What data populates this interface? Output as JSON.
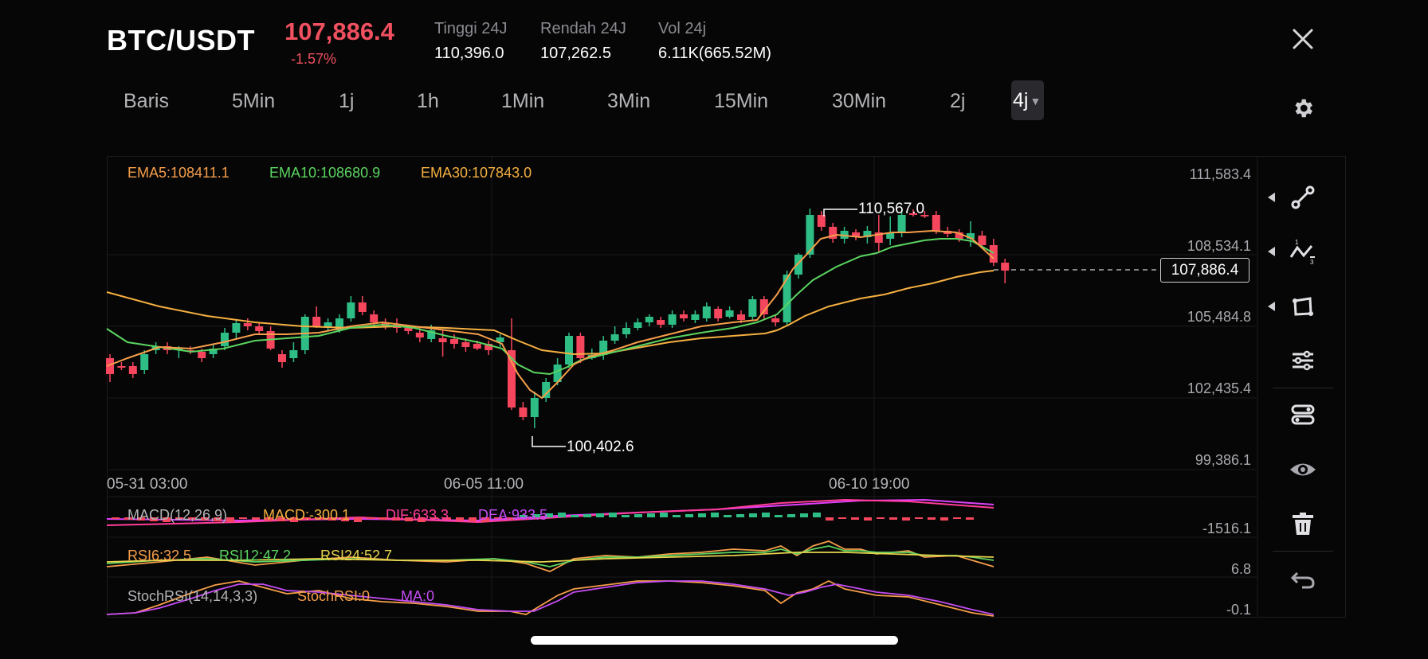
{
  "header": {
    "pair": "BTC/USDT",
    "price": "107,886.4",
    "change": "-1.57%",
    "stats": [
      {
        "label": "Tinggi 24J",
        "value": "110,396.0"
      },
      {
        "label": "Rendah 24J",
        "value": "107,262.5"
      },
      {
        "label": "Vol 24j",
        "value": "6.11K(665.52M)"
      }
    ]
  },
  "intervals": {
    "tabs": [
      "Baris",
      "5Min",
      "1j",
      "1h",
      "1Min",
      "3Min",
      "15Min",
      "30Min",
      "2j"
    ],
    "active": "4j"
  },
  "chart": {
    "ema_legend": {
      "ema5": "EMA5:108411.1",
      "ema10": "EMA10:108680.9",
      "ema30": "EMA30:107843.0"
    },
    "price_axis": [
      "111,583.4",
      "108,534.1",
      "105,484.8",
      "102,435.4",
      "99,386.1"
    ],
    "time_axis": [
      "05-31 03:00",
      "06-05 11:00",
      "06-10 19:00"
    ],
    "high_marker": "110,567.0",
    "low_marker": "100,402.6",
    "last_price": "107,886.4",
    "colors": {
      "up": "#2ebd85",
      "down": "#f6465d",
      "ema5": "#f59e4a",
      "ema10": "#5ad460",
      "ema30": "#f5b041"
    }
  },
  "indicators": {
    "macd": {
      "title": "MACD(12,26,9)",
      "macd": "MACD:-300.1",
      "dif": "DIF:633.3",
      "dea": "DEA:933.5",
      "axis": "-1516.1"
    },
    "rsi": {
      "rsi6": "RSI6:32.5",
      "rsi12": "RSI12:47.2",
      "rsi24": "RSI24:52.7",
      "axis": "6.8"
    },
    "stochrsi": {
      "title": "StochRSI(14,14,3,3)",
      "stochrsi": "StochRSI:0",
      "ma": "MA:0",
      "axis": "-0.1"
    }
  },
  "toolbar": {
    "icons": [
      "trend-line-icon",
      "wave-pattern-icon",
      "shape-icon",
      "indicator-settings-icon",
      "layers-icon",
      "visibility-icon",
      "delete-icon",
      "undo-icon"
    ]
  }
}
